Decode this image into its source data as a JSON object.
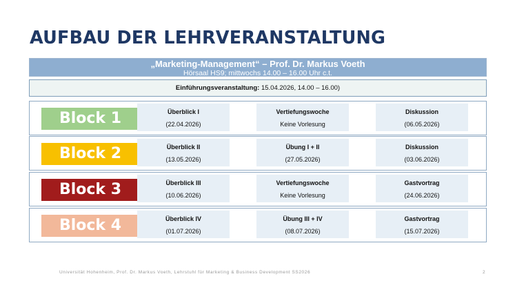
{
  "title": "AUFBAU DER LEHRVERANSTALTUNG",
  "banner": {
    "line1": "„Marketing-Management“ – Prof. Dr. Markus Voeth",
    "line2": "Hörsaal HS9; mittwochs 14.00 – 16.00 Uhr c.t."
  },
  "intro": {
    "label": "Einführungsveranstaltung:",
    "value": " 15.04.2026, 14.00 – 16.00)"
  },
  "colors": {
    "block1": "#9fcf8c",
    "block2": "#f8c000",
    "block3": "#a11c1c",
    "block4": "#f2b89a",
    "title": "#1f3864",
    "banner": "#8eaed0"
  },
  "blocks": [
    {
      "label": "Block 1",
      "cells": [
        {
          "title": "Überblick I",
          "sub": "(22.04.2026)"
        },
        {
          "title": "Vertiefungswoche",
          "sub": "Keine Vorlesung"
        },
        {
          "title": "Diskussion",
          "sub": "(06.05.2026)"
        }
      ]
    },
    {
      "label": "Block 2",
      "cells": [
        {
          "title": "Überblick II",
          "sub": "(13.05.2026)"
        },
        {
          "title": "Übung I + II",
          "sub": "(27.05.2026)"
        },
        {
          "title": "Diskussion",
          "sub": "(03.06.2026)"
        }
      ]
    },
    {
      "label": "Block 3",
      "cells": [
        {
          "title": "Überblick III",
          "sub": "(10.06.2026)"
        },
        {
          "title": "Vertiefungswoche",
          "sub": "Keine Vorlesung"
        },
        {
          "title": "Gastvortrag",
          "sub": "(24.06.2026)"
        }
      ]
    },
    {
      "label": "Block 4",
      "cells": [
        {
          "title": "Überblick IV",
          "sub": "(01.07.2026)"
        },
        {
          "title": "Übung III + IV",
          "sub": "(08.07.2026)"
        },
        {
          "title": "Gastvortrag",
          "sub": "(15.07.2026)"
        }
      ]
    }
  ],
  "footer": {
    "text": "Universität Hohenheim, Prof. Dr. Markus Voeth, Lehrstuhl für Marketing & Business Development SS2026",
    "page": "2"
  }
}
